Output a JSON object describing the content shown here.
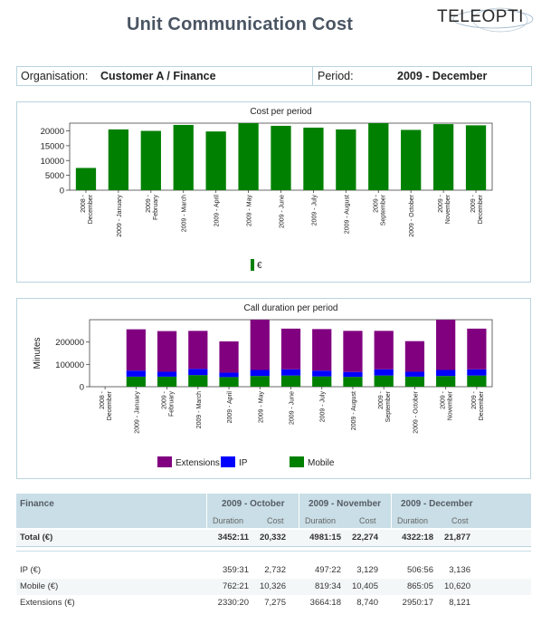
{
  "report": {
    "title": "Unit Communication Cost",
    "logo": "TELEOPTI",
    "organisation_label": "Organisation:",
    "organisation_value": "Customer A / Finance",
    "period_label": "Period:",
    "period_value": "2009 - December"
  },
  "chart_data": [
    {
      "type": "bar",
      "title": "Cost per period",
      "categories": [
        "2008 - December",
        "2009 - January",
        "2009 - February",
        "2009 - March",
        "2009 - April",
        "2009 - May",
        "2009 - June",
        "2009 - July",
        "2009 - August",
        "2009 - September",
        "2009 - October",
        "2009 - November",
        "2009 - December"
      ],
      "category_lines": [
        [
          "2008 -",
          "December"
        ],
        [
          "2009 - January"
        ],
        [
          "2009 -",
          "February"
        ],
        [
          "2009 - March"
        ],
        [
          "2009 - April"
        ],
        [
          "2009 - May"
        ],
        [
          "2009 - June"
        ],
        [
          "2009 - July"
        ],
        [
          "2009 - August"
        ],
        [
          "2009 -",
          "September"
        ],
        [
          "2009 - October"
        ],
        [
          "2009 -",
          "November"
        ],
        [
          "2009 -",
          "December"
        ]
      ],
      "series": [
        {
          "name": "€",
          "color": "#008000",
          "values": [
            7500,
            20500,
            20000,
            22000,
            19800,
            22600,
            21700,
            21100,
            20500,
            22600,
            20332,
            22274,
            21877
          ]
        }
      ],
      "yticks": [
        0,
        5000,
        10000,
        15000,
        20000
      ],
      "ylim": [
        0,
        22600
      ],
      "legend": [
        "€"
      ],
      "xlabel": "",
      "ylabel": ""
    },
    {
      "type": "bar",
      "stacked": true,
      "title": "Call duration per period",
      "ylabel": "Minutes",
      "categories": [
        "2008 - December",
        "2009 - January",
        "2009 - February",
        "2009 - March",
        "2009 - April",
        "2009 - May",
        "2009 - June",
        "2009 - July",
        "2009 - August",
        "2009 - September",
        "2009 - October",
        "2009 - November",
        "2009 - December"
      ],
      "category_lines": [
        [
          "2008 -",
          "December"
        ],
        [
          "2009 - January"
        ],
        [
          "2009 -",
          "February"
        ],
        [
          "2009 - March"
        ],
        [
          "2009 - April"
        ],
        [
          "2009 - May"
        ],
        [
          "2009 - June"
        ],
        [
          "2009 - July"
        ],
        [
          "2009 - August"
        ],
        [
          "2009 -",
          "September"
        ],
        [
          "2009 - October"
        ],
        [
          "2009 -",
          "November"
        ],
        [
          "2009 -",
          "December"
        ]
      ],
      "series": [
        {
          "name": "Mobile",
          "color": "#008000",
          "values": [
            0,
            45000,
            45000,
            52000,
            43000,
            48000,
            50000,
            46000,
            44000,
            50000,
            45000,
            48000,
            50000
          ]
        },
        {
          "name": "IP",
          "color": "#0000ff",
          "values": [
            0,
            27000,
            22000,
            28000,
            20000,
            27000,
            28000,
            26000,
            22000,
            28000,
            22000,
            27000,
            28000
          ]
        },
        {
          "name": "Extensions",
          "color": "#800080",
          "values": [
            0,
            185000,
            182000,
            170000,
            140000,
            225000,
            182000,
            186000,
            184000,
            172000,
            137000,
            225000,
            182000
          ]
        }
      ],
      "yticks": [
        0,
        100000,
        200000
      ],
      "ylim": [
        0,
        300000
      ],
      "legend": [
        "Extensions",
        "IP",
        "Mobile"
      ],
      "xlabel": ""
    }
  ],
  "table": {
    "title": "Finance",
    "periods": [
      "2009 - October",
      "2009 - November",
      "2009 - December"
    ],
    "duration_label": "Duration",
    "cost_label": "Cost",
    "total": {
      "label": "Total (€)",
      "values": [
        "3452:11",
        "20,332",
        "4981:15",
        "22,274",
        "4322:18",
        "21,877"
      ]
    },
    "rows": [
      {
        "label": "IP (€)",
        "values": [
          "359:31",
          "2,732",
          "497:22",
          "3,129",
          "506:56",
          "3,136"
        ]
      },
      {
        "label": "Mobile (€)",
        "values": [
          "762:21",
          "10,326",
          "819:34",
          "10,405",
          "865:05",
          "10,620"
        ]
      },
      {
        "label": "Extensions (€)",
        "values": [
          "2330:20",
          "7,275",
          "3664:18",
          "8,740",
          "2950:17",
          "8,121"
        ]
      }
    ]
  }
}
